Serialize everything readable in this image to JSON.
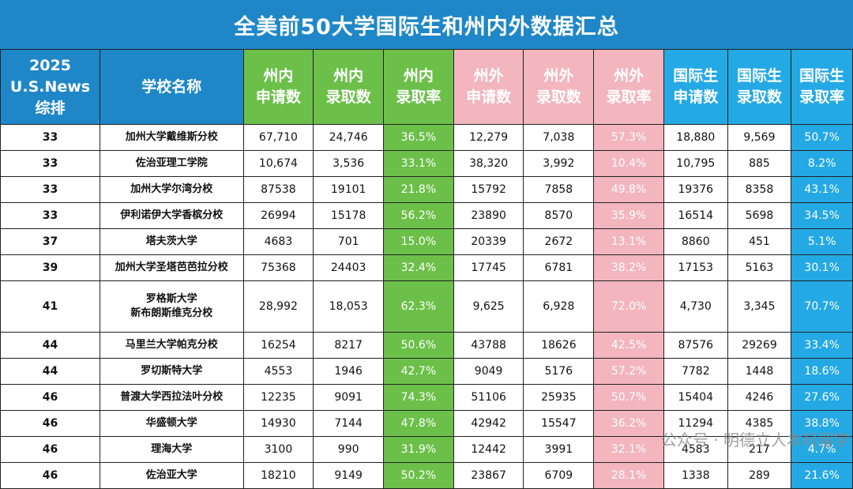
{
  "title": "全美前50大学国际生和州内外数据汇总",
  "headers": {
    "rank": [
      "2025",
      "U.S.News",
      "综排"
    ],
    "school": "学校名称",
    "in_apply": [
      "州内",
      "申请数"
    ],
    "in_admit": [
      "州内",
      "录取数"
    ],
    "in_rate": [
      "州内",
      "录取率"
    ],
    "out_apply": [
      "州外",
      "申请数"
    ],
    "out_admit": [
      "州外",
      "录取数"
    ],
    "out_rate": [
      "州外",
      "录取率"
    ],
    "intl_apply": [
      "国际生",
      "申请数"
    ],
    "intl_admit": [
      "国际生",
      "录取数"
    ],
    "intl_rate": [
      "国际生",
      "录取率"
    ]
  },
  "rows": [
    {
      "rank": "33",
      "school": [
        "加州大学戴维斯分校"
      ],
      "in_apply": "67,710",
      "in_admit": "24,746",
      "in_rate": "36.5%",
      "out_apply": "12,279",
      "out_admit": "7,038",
      "out_rate": "57.3%",
      "intl_apply": "18,880",
      "intl_admit": "9,569",
      "intl_rate": "50.7%"
    },
    {
      "rank": "33",
      "school": [
        "佐治亚理工学院"
      ],
      "in_apply": "10,674",
      "in_admit": "3,536",
      "in_rate": "33.1%",
      "out_apply": "38,320",
      "out_admit": "3,992",
      "out_rate": "10.4%",
      "intl_apply": "10,795",
      "intl_admit": "885",
      "intl_rate": "8.2%"
    },
    {
      "rank": "33",
      "school": [
        "加州大学尔湾分校"
      ],
      "in_apply": "87538",
      "in_admit": "19101",
      "in_rate": "21.8%",
      "out_apply": "15792",
      "out_admit": "7858",
      "out_rate": "49.8%",
      "intl_apply": "19376",
      "intl_admit": "8358",
      "intl_rate": "43.1%"
    },
    {
      "rank": "33",
      "school": [
        "伊利诺伊大学香槟分校"
      ],
      "in_apply": "26994",
      "in_admit": "15178",
      "in_rate": "56.2%",
      "out_apply": "23890",
      "out_admit": "8570",
      "out_rate": "35.9%",
      "intl_apply": "16514",
      "intl_admit": "5698",
      "intl_rate": "34.5%"
    },
    {
      "rank": "37",
      "school": [
        "塔夫茨大学"
      ],
      "in_apply": "4683",
      "in_admit": "701",
      "in_rate": "15.0%",
      "out_apply": "20339",
      "out_admit": "2672",
      "out_rate": "13.1%",
      "intl_apply": "8860",
      "intl_admit": "451",
      "intl_rate": "5.1%"
    },
    {
      "rank": "39",
      "school": [
        "加州大学圣塔芭芭拉分校"
      ],
      "in_apply": "75368",
      "in_admit": "24403",
      "in_rate": "32.4%",
      "out_apply": "17745",
      "out_admit": "6781",
      "out_rate": "38.2%",
      "intl_apply": "17153",
      "intl_admit": "5163",
      "intl_rate": "30.1%"
    },
    {
      "rank": "41",
      "school": [
        "罗格斯大学",
        "新布朗斯维克分校"
      ],
      "in_apply": "28,992",
      "in_admit": "18,053",
      "in_rate": "62.3%",
      "out_apply": "9,625",
      "out_admit": "6,928",
      "out_rate": "72.0%",
      "intl_apply": "4,730",
      "intl_admit": "3,345",
      "intl_rate": "70.7%"
    },
    {
      "rank": "44",
      "school": [
        "马里兰大学帕克分校"
      ],
      "in_apply": "16254",
      "in_admit": "8217",
      "in_rate": "50.6%",
      "out_apply": "43788",
      "out_admit": "18626",
      "out_rate": "42.5%",
      "intl_apply": "87576",
      "intl_admit": "29269",
      "intl_rate": "33.4%"
    },
    {
      "rank": "44",
      "school": [
        "罗切斯特大学"
      ],
      "in_apply": "4553",
      "in_admit": "1946",
      "in_rate": "42.7%",
      "out_apply": "9049",
      "out_admit": "5176",
      "out_rate": "57.2%",
      "intl_apply": "7782",
      "intl_admit": "1448",
      "intl_rate": "18.6%"
    },
    {
      "rank": "46",
      "school": [
        "普渡大学西拉法叶分校"
      ],
      "in_apply": "12235",
      "in_admit": "9091",
      "in_rate": "74.3%",
      "out_apply": "51106",
      "out_admit": "25935",
      "out_rate": "50.7%",
      "intl_apply": "15404",
      "intl_admit": "4246",
      "intl_rate": "27.6%"
    },
    {
      "rank": "46",
      "school": [
        "华盛顿大学"
      ],
      "in_apply": "14930",
      "in_admit": "7144",
      "in_rate": "47.8%",
      "out_apply": "42942",
      "out_admit": "15547",
      "out_rate": "36.2%",
      "intl_apply": "11294",
      "intl_admit": "4385",
      "intl_rate": "38.8%"
    },
    {
      "rank": "46",
      "school": [
        "理海大学"
      ],
      "in_apply": "3100",
      "in_admit": "990",
      "in_rate": "31.9%",
      "out_apply": "12442",
      "out_admit": "3991",
      "out_rate": "32.1%",
      "intl_apply": "4583",
      "intl_admit": "217",
      "intl_rate": "4.7%"
    },
    {
      "rank": "46",
      "school": [
        "佐治亚大学"
      ],
      "in_apply": "18210",
      "in_admit": "9149",
      "in_rate": "50.2%",
      "out_apply": "23867",
      "out_admit": "6709",
      "out_rate": "28.1%",
      "intl_apply": "1338",
      "intl_admit": "289",
      "intl_rate": "21.6%"
    }
  ],
  "watermark": "公众号 · 明德立人本科留学",
  "colors": {
    "title_bg": "#1f87c8",
    "rank_header": "#1f87c8",
    "in_state": "#6cc04a",
    "out_state": "#f3b5be",
    "international": "#24a9e4"
  }
}
